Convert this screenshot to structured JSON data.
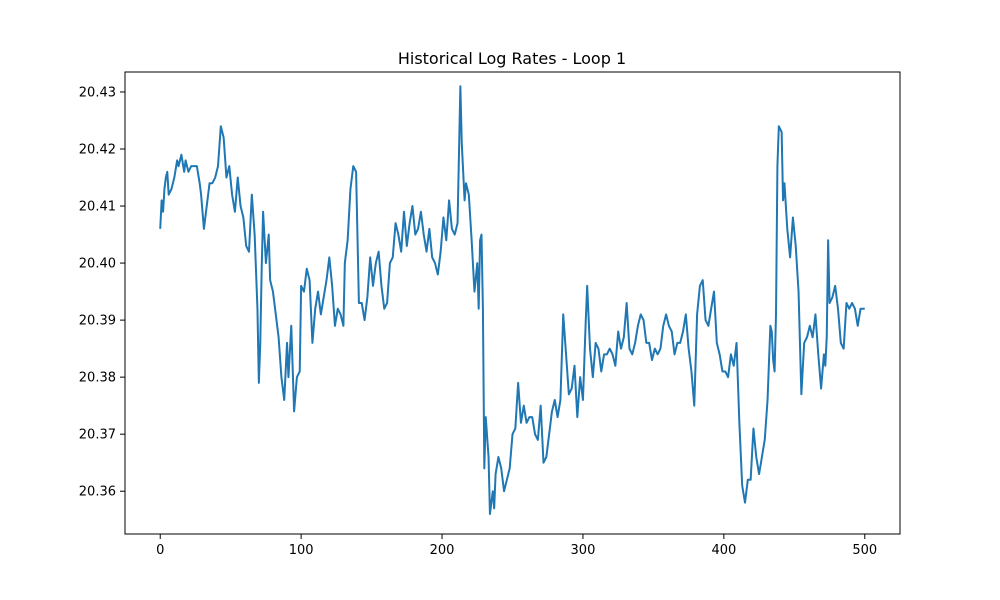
{
  "chart_data": {
    "type": "line",
    "title": "Historical Log Rates - Loop 1",
    "xlabel": "",
    "ylabel": "",
    "xlim": [
      -25,
      525
    ],
    "ylim": [
      20.3525,
      20.4335
    ],
    "xticks": [
      0,
      100,
      200,
      300,
      400,
      500
    ],
    "yticks": [
      20.36,
      20.37,
      20.38,
      20.39,
      20.4,
      20.41,
      20.42,
      20.43
    ],
    "ytick_labels": [
      "20.36",
      "20.37",
      "20.38",
      "20.39",
      "20.40",
      "20.41",
      "20.42",
      "20.43"
    ],
    "grid": false,
    "legend": "none",
    "series": [
      {
        "color": "#1f77b4",
        "points": [
          [
            0,
            20.406
          ],
          [
            1,
            20.411
          ],
          [
            2,
            20.409
          ],
          [
            3,
            20.413
          ],
          [
            4,
            20.415
          ],
          [
            5,
            20.416
          ],
          [
            6,
            20.412
          ],
          [
            8,
            20.413
          ],
          [
            10,
            20.415
          ],
          [
            12,
            20.418
          ],
          [
            13,
            20.417
          ],
          [
            15,
            20.419
          ],
          [
            17,
            20.416
          ],
          [
            18,
            20.418
          ],
          [
            20,
            20.416
          ],
          [
            22,
            20.417
          ],
          [
            24,
            20.417
          ],
          [
            26,
            20.417
          ],
          [
            28,
            20.414
          ],
          [
            29,
            20.412
          ],
          [
            31,
            20.406
          ],
          [
            33,
            20.41
          ],
          [
            35,
            20.414
          ],
          [
            37,
            20.414
          ],
          [
            39,
            20.415
          ],
          [
            41,
            20.417
          ],
          [
            43,
            20.424
          ],
          [
            45,
            20.422
          ],
          [
            47,
            20.415
          ],
          [
            49,
            20.417
          ],
          [
            51,
            20.412
          ],
          [
            53,
            20.409
          ],
          [
            55,
            20.415
          ],
          [
            57,
            20.41
          ],
          [
            59,
            20.408
          ],
          [
            61,
            20.403
          ],
          [
            63,
            20.402
          ],
          [
            65,
            20.412
          ],
          [
            67,
            20.405
          ],
          [
            69,
            20.392
          ],
          [
            70,
            20.379
          ],
          [
            71,
            20.386
          ],
          [
            72,
            20.399
          ],
          [
            73,
            20.409
          ],
          [
            75,
            20.4
          ],
          [
            77,
            20.405
          ],
          [
            78,
            20.397
          ],
          [
            80,
            20.395
          ],
          [
            82,
            20.391
          ],
          [
            84,
            20.387
          ],
          [
            86,
            20.38
          ],
          [
            88,
            20.376
          ],
          [
            90,
            20.386
          ],
          [
            91,
            20.38
          ],
          [
            93,
            20.389
          ],
          [
            95,
            20.374
          ],
          [
            96,
            20.377
          ],
          [
            97,
            20.38
          ],
          [
            99,
            20.381
          ],
          [
            100,
            20.396
          ],
          [
            102,
            20.395
          ],
          [
            104,
            20.399
          ],
          [
            106,
            20.397
          ],
          [
            108,
            20.386
          ],
          [
            110,
            20.392
          ],
          [
            112,
            20.395
          ],
          [
            114,
            20.391
          ],
          [
            116,
            20.394
          ],
          [
            118,
            20.397
          ],
          [
            120,
            20.401
          ],
          [
            122,
            20.396
          ],
          [
            124,
            20.389
          ],
          [
            126,
            20.392
          ],
          [
            128,
            20.391
          ],
          [
            130,
            20.389
          ],
          [
            131,
            20.4
          ],
          [
            133,
            20.404
          ],
          [
            135,
            20.413
          ],
          [
            137,
            20.417
          ],
          [
            139,
            20.416
          ],
          [
            141,
            20.393
          ],
          [
            143,
            20.393
          ],
          [
            145,
            20.39
          ],
          [
            147,
            20.394
          ],
          [
            149,
            20.401
          ],
          [
            151,
            20.396
          ],
          [
            153,
            20.4
          ],
          [
            155,
            20.402
          ],
          [
            157,
            20.396
          ],
          [
            159,
            20.392
          ],
          [
            161,
            20.393
          ],
          [
            163,
            20.4
          ],
          [
            165,
            20.401
          ],
          [
            167,
            20.407
          ],
          [
            169,
            20.405
          ],
          [
            171,
            20.402
          ],
          [
            173,
            20.409
          ],
          [
            175,
            20.403
          ],
          [
            177,
            20.407
          ],
          [
            179,
            20.41
          ],
          [
            181,
            20.405
          ],
          [
            183,
            20.406
          ],
          [
            185,
            20.409
          ],
          [
            187,
            20.405
          ],
          [
            189,
            20.402
          ],
          [
            191,
            20.406
          ],
          [
            193,
            20.401
          ],
          [
            195,
            20.4
          ],
          [
            197,
            20.398
          ],
          [
            199,
            20.402
          ],
          [
            201,
            20.408
          ],
          [
            203,
            20.404
          ],
          [
            205,
            20.411
          ],
          [
            207,
            20.406
          ],
          [
            209,
            20.405
          ],
          [
            211,
            20.407
          ],
          [
            213,
            20.431
          ],
          [
            214,
            20.421
          ],
          [
            216,
            20.411
          ],
          [
            217,
            20.414
          ],
          [
            219,
            20.412
          ],
          [
            221,
            20.404
          ],
          [
            223,
            20.395
          ],
          [
            225,
            20.4
          ],
          [
            226,
            20.392
          ],
          [
            227,
            20.404
          ],
          [
            228,
            20.405
          ],
          [
            229,
            20.392
          ],
          [
            230,
            20.364
          ],
          [
            231,
            20.373
          ],
          [
            233,
            20.366
          ],
          [
            234,
            20.356
          ],
          [
            236,
            20.36
          ],
          [
            237,
            20.357
          ],
          [
            238,
            20.363
          ],
          [
            240,
            20.366
          ],
          [
            242,
            20.364
          ],
          [
            244,
            20.36
          ],
          [
            246,
            20.362
          ],
          [
            248,
            20.364
          ],
          [
            250,
            20.37
          ],
          [
            252,
            20.371
          ],
          [
            254,
            20.379
          ],
          [
            256,
            20.372
          ],
          [
            258,
            20.375
          ],
          [
            260,
            20.372
          ],
          [
            262,
            20.373
          ],
          [
            264,
            20.373
          ],
          [
            266,
            20.37
          ],
          [
            268,
            20.369
          ],
          [
            270,
            20.375
          ],
          [
            272,
            20.365
          ],
          [
            274,
            20.366
          ],
          [
            276,
            20.37
          ],
          [
            278,
            20.374
          ],
          [
            280,
            20.376
          ],
          [
            282,
            20.373
          ],
          [
            284,
            20.376
          ],
          [
            286,
            20.391
          ],
          [
            288,
            20.384
          ],
          [
            290,
            20.377
          ],
          [
            292,
            20.378
          ],
          [
            294,
            20.382
          ],
          [
            296,
            20.373
          ],
          [
            298,
            20.38
          ],
          [
            300,
            20.376
          ],
          [
            302,
            20.39
          ],
          [
            303,
            20.396
          ],
          [
            305,
            20.385
          ],
          [
            307,
            20.38
          ],
          [
            309,
            20.386
          ],
          [
            311,
            20.385
          ],
          [
            313,
            20.381
          ],
          [
            315,
            20.384
          ],
          [
            317,
            20.384
          ],
          [
            319,
            20.385
          ],
          [
            321,
            20.384
          ],
          [
            323,
            20.382
          ],
          [
            325,
            20.388
          ],
          [
            327,
            20.385
          ],
          [
            329,
            20.387
          ],
          [
            331,
            20.393
          ],
          [
            333,
            20.385
          ],
          [
            335,
            20.384
          ],
          [
            337,
            20.386
          ],
          [
            339,
            20.389
          ],
          [
            341,
            20.391
          ],
          [
            343,
            20.39
          ],
          [
            345,
            20.386
          ],
          [
            347,
            20.386
          ],
          [
            349,
            20.383
          ],
          [
            351,
            20.385
          ],
          [
            353,
            20.384
          ],
          [
            355,
            20.385
          ],
          [
            357,
            20.389
          ],
          [
            359,
            20.391
          ],
          [
            361,
            20.389
          ],
          [
            363,
            20.388
          ],
          [
            365,
            20.384
          ],
          [
            367,
            20.386
          ],
          [
            369,
            20.386
          ],
          [
            371,
            20.388
          ],
          [
            373,
            20.391
          ],
          [
            375,
            20.385
          ],
          [
            377,
            20.381
          ],
          [
            379,
            20.375
          ],
          [
            381,
            20.391
          ],
          [
            383,
            20.396
          ],
          [
            385,
            20.397
          ],
          [
            387,
            20.39
          ],
          [
            389,
            20.389
          ],
          [
            391,
            20.392
          ],
          [
            393,
            20.395
          ],
          [
            395,
            20.386
          ],
          [
            397,
            20.384
          ],
          [
            399,
            20.381
          ],
          [
            401,
            20.381
          ],
          [
            403,
            20.38
          ],
          [
            405,
            20.384
          ],
          [
            407,
            20.382
          ],
          [
            409,
            20.386
          ],
          [
            411,
            20.372
          ],
          [
            413,
            20.361
          ],
          [
            415,
            20.358
          ],
          [
            417,
            20.362
          ],
          [
            419,
            20.362
          ],
          [
            421,
            20.371
          ],
          [
            423,
            20.366
          ],
          [
            425,
            20.363
          ],
          [
            427,
            20.366
          ],
          [
            429,
            20.369
          ],
          [
            431,
            20.376
          ],
          [
            433,
            20.389
          ],
          [
            434,
            20.388
          ],
          [
            435,
            20.383
          ],
          [
            436,
            20.381
          ],
          [
            437,
            20.391
          ],
          [
            438,
            20.417
          ],
          [
            439,
            20.424
          ],
          [
            441,
            20.423
          ],
          [
            442,
            20.411
          ],
          [
            443,
            20.414
          ],
          [
            445,
            20.406
          ],
          [
            447,
            20.401
          ],
          [
            449,
            20.408
          ],
          [
            451,
            20.403
          ],
          [
            453,
            20.395
          ],
          [
            455,
            20.377
          ],
          [
            457,
            20.386
          ],
          [
            459,
            20.387
          ],
          [
            461,
            20.389
          ],
          [
            463,
            20.387
          ],
          [
            465,
            20.391
          ],
          [
            467,
            20.384
          ],
          [
            469,
            20.378
          ],
          [
            471,
            20.384
          ],
          [
            472,
            20.382
          ],
          [
            473,
            20.387
          ],
          [
            474,
            20.404
          ],
          [
            475,
            20.393
          ],
          [
            477,
            20.394
          ],
          [
            479,
            20.396
          ],
          [
            481,
            20.392
          ],
          [
            483,
            20.386
          ],
          [
            485,
            20.385
          ],
          [
            487,
            20.393
          ],
          [
            489,
            20.392
          ],
          [
            491,
            20.393
          ],
          [
            493,
            20.392
          ],
          [
            495,
            20.389
          ],
          [
            497,
            20.392
          ],
          [
            500,
            20.392
          ]
        ]
      }
    ]
  }
}
